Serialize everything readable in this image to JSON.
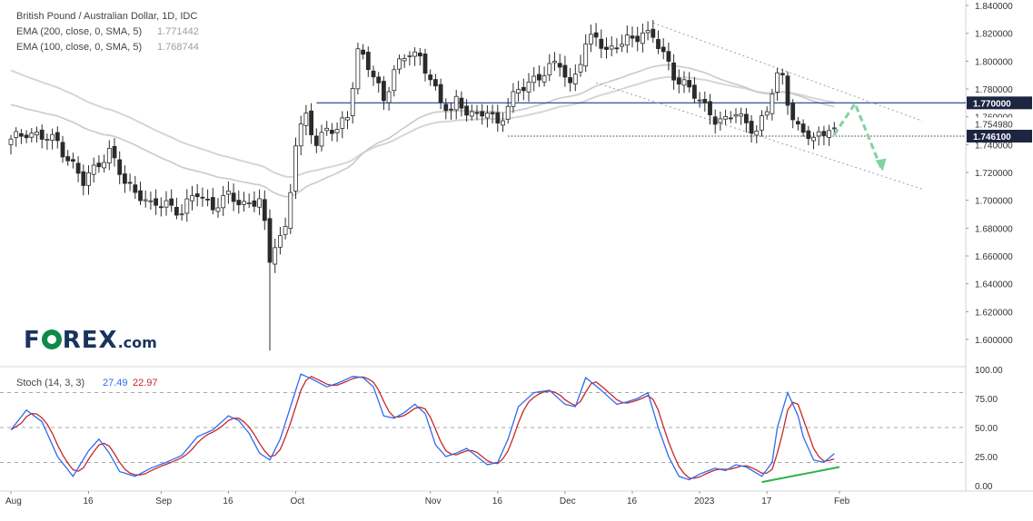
{
  "chart_data": [
    {
      "type": "candlestick",
      "title": "British Pound / Australian Dollar, 1D, IDC",
      "indicators": [
        {
          "name": "EMA (200, close, 0, SMA, 5)",
          "value": "1.771442",
          "color": "#9e9e9e"
        },
        {
          "name": "EMA (100, close, 0, SMA, 5)",
          "value": "1.768744",
          "color": "#bdbdbd"
        }
      ],
      "ylim": [
        1.588,
        1.844
      ],
      "y_ticks": [
        "1.840000",
        "1.820000",
        "1.800000",
        "1.780000",
        "1.760000",
        "1.740000",
        "1.720000",
        "1.700000",
        "1.680000",
        "1.660000",
        "1.640000",
        "1.620000",
        "1.600000"
      ],
      "price_labels": [
        {
          "label": "1.770000",
          "value": 1.77,
          "style": "dark"
        },
        {
          "label": "1.754980",
          "value": 1.75498,
          "style": "plain"
        },
        {
          "label": "1.746100",
          "value": 1.7461,
          "style": "dark"
        }
      ],
      "horizontal_levels": [
        {
          "value": 1.77,
          "style": "solid",
          "color": "#1f3a93"
        },
        {
          "value": 1.7461,
          "style": "dotted",
          "color": "#333333"
        }
      ],
      "channel": {
        "upper": [
          [
            124,
            1.8275
          ],
          [
            176,
            1.757
          ]
        ],
        "lower": [
          [
            113,
            1.7845
          ],
          [
            176,
            1.708
          ]
        ]
      },
      "projection": [
        [
          159,
          1.7472
        ],
        [
          163,
          1.7695
        ],
        [
          168,
          1.7235
        ]
      ],
      "x_labels": [
        {
          "label": "Aug",
          "index": 0
        },
        {
          "label": "16",
          "index": 15
        },
        {
          "label": "Sep",
          "index": 29
        },
        {
          "label": "16",
          "index": 42
        },
        {
          "label": "Oct",
          "index": 55
        },
        {
          "label": "Nov",
          "index": 81
        },
        {
          "label": "16",
          "index": 94
        },
        {
          "label": "Dec",
          "index": 107
        },
        {
          "label": "16",
          "index": 120
        },
        {
          "label": "2023",
          "index": 133
        },
        {
          "label": "17",
          "index": 146
        },
        {
          "label": "Feb",
          "index": 160
        }
      ],
      "x_domain": [
        0,
        176
      ],
      "anchor_closes": [
        [
          0,
          1.742
        ],
        [
          3,
          1.75
        ],
        [
          6,
          1.745
        ],
        [
          9,
          1.742
        ],
        [
          12,
          1.725
        ],
        [
          14,
          1.712
        ],
        [
          17,
          1.728
        ],
        [
          19,
          1.735
        ],
        [
          22,
          1.712
        ],
        [
          25,
          1.705
        ],
        [
          27,
          1.695
        ],
        [
          30,
          1.698
        ],
        [
          33,
          1.692
        ],
        [
          36,
          1.705
        ],
        [
          39,
          1.696
        ],
        [
          42,
          1.702
        ],
        [
          45,
          1.698
        ],
        [
          48,
          1.7
        ],
        [
          49,
          1.68
        ],
        [
          50,
          1.655
        ],
        [
          51,
          1.67
        ],
        [
          53,
          1.68
        ],
        [
          54,
          1.708
        ],
        [
          55,
          1.74
        ],
        [
          57,
          1.76
        ],
        [
          59,
          1.742
        ],
        [
          61,
          1.752
        ],
        [
          63,
          1.748
        ],
        [
          65,
          1.762
        ],
        [
          67,
          1.808
        ],
        [
          68,
          1.803
        ],
        [
          70,
          1.788
        ],
        [
          72,
          1.772
        ],
        [
          74,
          1.795
        ],
        [
          77,
          1.805
        ],
        [
          79,
          1.802
        ],
        [
          81,
          1.79
        ],
        [
          83,
          1.768
        ],
        [
          85,
          1.764
        ],
        [
          86,
          1.772
        ],
        [
          88,
          1.766
        ],
        [
          90,
          1.758
        ],
        [
          92,
          1.764
        ],
        [
          94,
          1.756
        ],
        [
          96,
          1.768
        ],
        [
          98,
          1.778
        ],
        [
          101,
          1.788
        ],
        [
          104,
          1.794
        ],
        [
          106,
          1.798
        ],
        [
          108,
          1.783
        ],
        [
          109,
          1.792
        ],
        [
          111,
          1.81
        ],
        [
          113,
          1.818
        ],
        [
          115,
          1.808
        ],
        [
          117,
          1.812
        ],
        [
          118,
          1.812
        ],
        [
          120,
          1.815
        ],
        [
          122,
          1.822
        ],
        [
          124,
          1.818
        ],
        [
          126,
          1.803
        ],
        [
          128,
          1.79
        ],
        [
          130,
          1.785
        ],
        [
          132,
          1.775
        ],
        [
          134,
          1.766
        ],
        [
          136,
          1.76
        ],
        [
          138,
          1.757
        ],
        [
          140,
          1.762
        ],
        [
          142,
          1.755
        ],
        [
          144,
          1.752
        ],
        [
          146,
          1.762
        ],
        [
          147,
          1.778
        ],
        [
          148,
          1.79
        ],
        [
          149,
          1.788
        ],
        [
          150,
          1.772
        ],
        [
          152,
          1.752
        ],
        [
          153,
          1.745
        ],
        [
          155,
          1.746
        ],
        [
          157,
          1.748
        ],
        [
          158,
          1.755
        ],
        [
          159,
          1.752
        ]
      ]
    },
    {
      "type": "line",
      "title": "Stoch (14, 3, 3)",
      "series": [
        {
          "name": "%K",
          "value": "27.49",
          "color": "#2e6bf0"
        },
        {
          "name": "%D",
          "value": "22.97",
          "color": "#c62828"
        }
      ],
      "ylim": [
        0,
        100
      ],
      "y_ticks": [
        "100.00",
        "75.00",
        "50.00",
        "25.00",
        "0.00"
      ],
      "bands": [
        80,
        50,
        20
      ],
      "k_anchors": [
        [
          0,
          48
        ],
        [
          3,
          65
        ],
        [
          6,
          55
        ],
        [
          9,
          25
        ],
        [
          12,
          8
        ],
        [
          15,
          30
        ],
        [
          17,
          40
        ],
        [
          19,
          28
        ],
        [
          21,
          12
        ],
        [
          24,
          8
        ],
        [
          27,
          15
        ],
        [
          30,
          20
        ],
        [
          33,
          26
        ],
        [
          36,
          42
        ],
        [
          39,
          48
        ],
        [
          42,
          60
        ],
        [
          44,
          56
        ],
        [
          46,
          45
        ],
        [
          48,
          28
        ],
        [
          50,
          22
        ],
        [
          52,
          40
        ],
        [
          54,
          68
        ],
        [
          56,
          96
        ],
        [
          58,
          92
        ],
        [
          61,
          85
        ],
        [
          63,
          88
        ],
        [
          66,
          94
        ],
        [
          68,
          93
        ],
        [
          70,
          85
        ],
        [
          72,
          60
        ],
        [
          74,
          58
        ],
        [
          76,
          63
        ],
        [
          78,
          70
        ],
        [
          80,
          62
        ],
        [
          82,
          35
        ],
        [
          84,
          25
        ],
        [
          86,
          28
        ],
        [
          88,
          32
        ],
        [
          90,
          25
        ],
        [
          92,
          18
        ],
        [
          94,
          20
        ],
        [
          96,
          40
        ],
        [
          98,
          68
        ],
        [
          101,
          80
        ],
        [
          104,
          82
        ],
        [
          107,
          70
        ],
        [
          109,
          68
        ],
        [
          111,
          93
        ],
        [
          114,
          82
        ],
        [
          117,
          70
        ],
        [
          119,
          72
        ],
        [
          121,
          75
        ],
        [
          123,
          80
        ],
        [
          125,
          50
        ],
        [
          127,
          25
        ],
        [
          129,
          8
        ],
        [
          131,
          5
        ],
        [
          133,
          10
        ],
        [
          136,
          15
        ],
        [
          138,
          13
        ],
        [
          140,
          18
        ],
        [
          142,
          16
        ],
        [
          145,
          8
        ],
        [
          147,
          20
        ],
        [
          148,
          50
        ],
        [
          150,
          80
        ],
        [
          152,
          60
        ],
        [
          153,
          42
        ],
        [
          155,
          22
        ],
        [
          157,
          20
        ],
        [
          159,
          27.49
        ]
      ],
      "divergence": [
        [
          145,
          3
        ],
        [
          160,
          16
        ]
      ]
    }
  ],
  "watermark": {
    "text": "F",
    "suffix": "REX",
    "domain": ".com",
    "colors": {
      "text": "#19335f",
      "o": "#0e8a4a"
    }
  },
  "colors": {
    "up": "#ffffff",
    "down": "#2b2b2b",
    "wick": "#2b2b2b",
    "grid": "#f1f3f6",
    "axis_text": "#333333",
    "divergence": "#2bb24c",
    "projection": "#7fd3a0"
  }
}
